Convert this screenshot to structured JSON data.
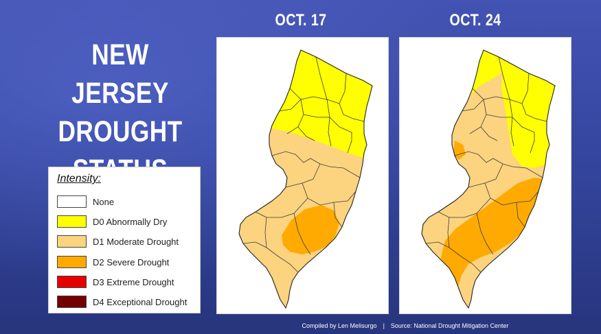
{
  "title_lines": [
    "NEW JERSEY",
    "DROUGHT",
    "STATUS"
  ],
  "legend": {
    "title": "Intensity:",
    "items": [
      {
        "label": "None",
        "color": "#ffffff"
      },
      {
        "label": "D0 Abnormally Dry",
        "color": "#ffff00"
      },
      {
        "label": "D1 Moderate Drought",
        "color": "#fcd37f"
      },
      {
        "label": "D2 Severe Drought",
        "color": "#ffaa00"
      },
      {
        "label": "D3 Extreme Drought",
        "color": "#e60000"
      },
      {
        "label": "D4 Exceptional Drought",
        "color": "#730000"
      }
    ]
  },
  "maps": [
    {
      "date": "OCT. 17"
    },
    {
      "date": "OCT. 24"
    }
  ],
  "footer": {
    "compiled": "Compiled by Len Melisurgo",
    "separator": "|",
    "source": "Source: National Drought Mitigation Center"
  }
}
